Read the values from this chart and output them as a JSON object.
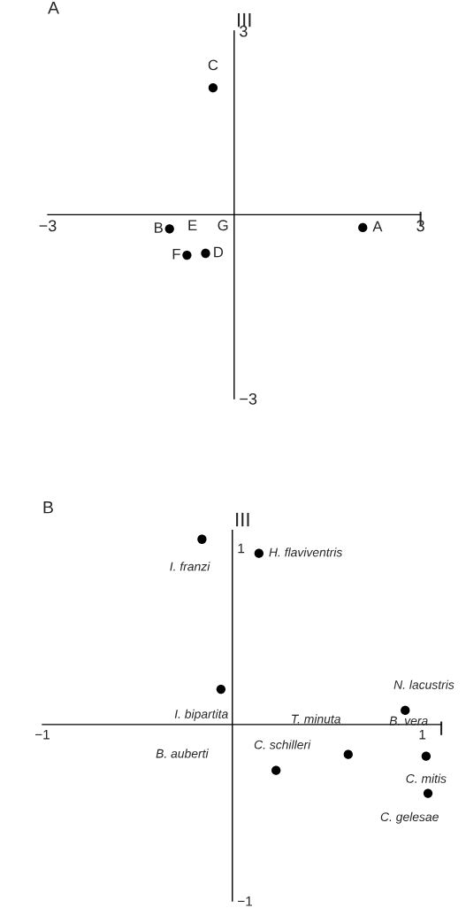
{
  "chart_data": [
    {
      "type": "scatter",
      "title": "A",
      "xlabel": "I",
      "ylabel": "III",
      "x": [
        2.07,
        -1.04,
        -0.34,
        -0.46,
        -0.76
      ],
      "series": [
        {
          "color": "#000000",
          "values": [
            -0.21,
            -0.23,
            2.07,
            -0.63,
            -0.66
          ]
        }
      ],
      "xlim": [
        -3,
        3
      ],
      "ylim": [
        -3,
        3
      ],
      "xticks": [
        {
          "value": -3,
          "label": "−3"
        },
        3
      ],
      "yticks": [
        {
          "value": -3,
          "label": "−3"
        },
        3
      ],
      "marker": "circle",
      "grid": false,
      "legend": false,
      "annotations": [
        {
          "text": "A",
          "x": 2.07,
          "y": -0.21
        },
        {
          "text": "B",
          "x": -1.04,
          "y": -0.23
        },
        {
          "text": "C",
          "x": -0.34,
          "y": 2.07
        },
        {
          "text": "D",
          "x": -0.46,
          "y": -0.63
        },
        {
          "text": "F",
          "x": -0.76,
          "y": -0.66
        },
        "E",
        "G"
      ]
    },
    {
      "type": "scatter",
      "title": "B",
      "xlabel": "I",
      "ylabel": "III",
      "x": [
        -0.16,
        0.14,
        -0.06,
        0.91,
        0.61,
        1.02,
        0.23,
        1.03
      ],
      "series": [
        {
          "color": "#000000",
          "values": [
            1.05,
            0.97,
            0.2,
            0.08,
            -0.17,
            -0.18,
            -0.26,
            -0.39
          ]
        }
      ],
      "xlim": [
        -1,
        1.1
      ],
      "ylim": [
        -1,
        1.1
      ],
      "xticks": [
        {
          "value": -1,
          "label": "−1"
        },
        1
      ],
      "yticks": [
        {
          "value": -1,
          "label": "−1"
        },
        1
      ],
      "marker": "circle",
      "grid": false,
      "legend": false,
      "annotations": [
        {
          "text": "I. franzi",
          "x": -0.16,
          "y": 1.05
        },
        {
          "text": "H. flaviventris",
          "x": 0.14,
          "y": 0.97
        },
        {
          "text": "I. bipartita",
          "x": -0.06,
          "y": 0.2
        },
        {
          "text": "N. lacustris",
          "x": 0.91,
          "y": 0.08
        },
        {
          "text": "T. minuta",
          "x": 0.61,
          "y": -0.17
        },
        {
          "text": "B. vera",
          "x": 1.02,
          "y": -0.18
        },
        {
          "text": "C. mitis",
          "x": 1.02,
          "y": -0.18
        },
        {
          "text": "C. schilleri",
          "x": 0.23,
          "y": -0.26
        },
        {
          "text": "C. gelesae",
          "x": 1.03,
          "y": -0.39
        },
        "B. auberti"
      ]
    }
  ]
}
